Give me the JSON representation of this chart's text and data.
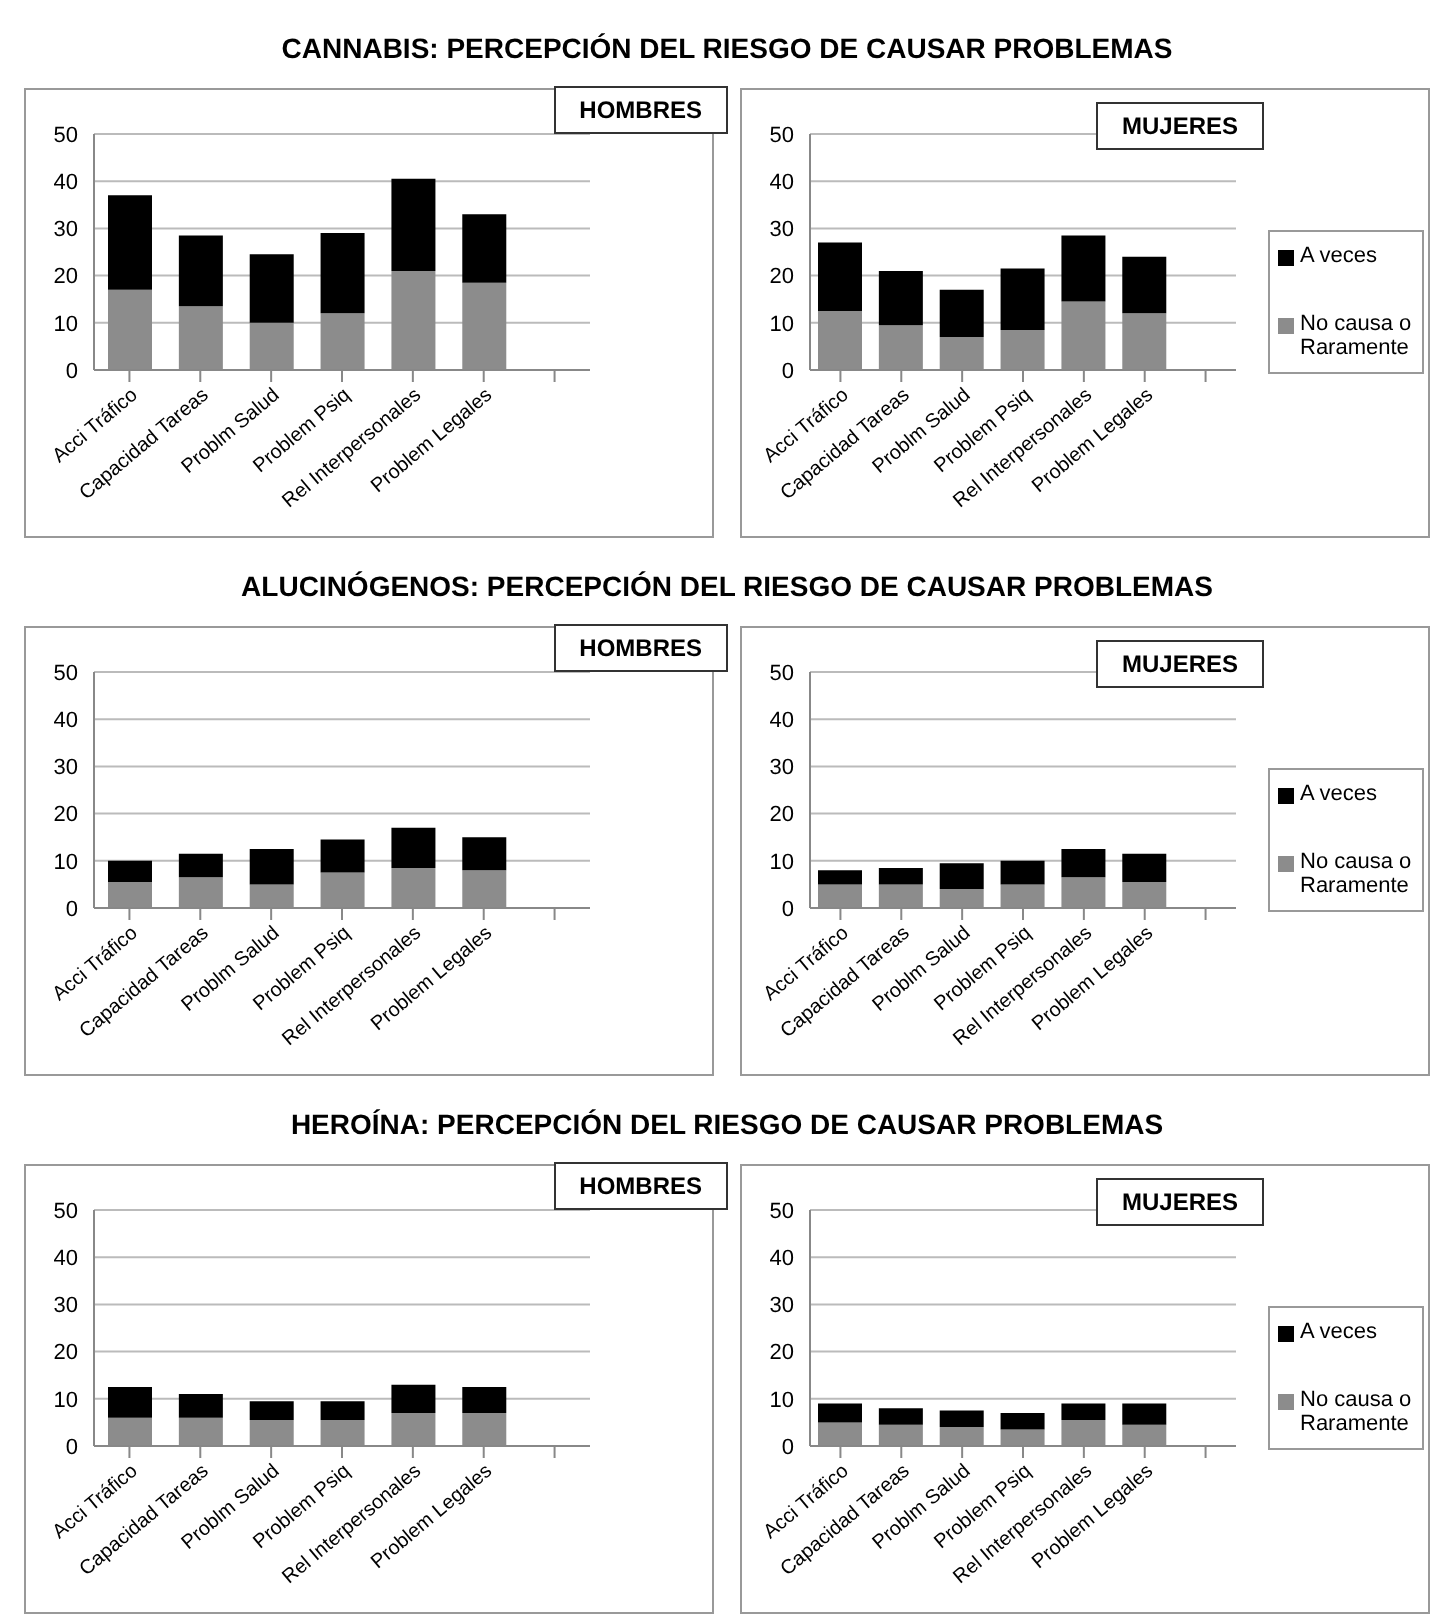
{
  "chart_data": [
    {
      "type": "bar",
      "title": "CANNABIS: PERCEPCIÓN DEL RIESGO DE CAUSAR PROBLEMAS",
      "subtitle": "HOMBRES",
      "categories": [
        "Acci Tráfico",
        "Capacidad Tareas",
        "Problm Salud",
        "Problem Psiq",
        "Rel Interpersonales",
        "Problem Legales",
        null
      ],
      "stacked": true,
      "ylim": [
        0,
        50
      ],
      "yticks": [
        0,
        10,
        20,
        30,
        40,
        50
      ],
      "grid": "y",
      "legend": false,
      "series": [
        {
          "color": "#8c8c8c",
          "values": [
            17,
            13.5,
            10,
            12,
            21,
            18.5,
            null
          ]
        },
        {
          "color": "#000000",
          "values": [
            20,
            15,
            14.5,
            17,
            19.5,
            14.5,
            null
          ]
        }
      ]
    },
    {
      "type": "bar",
      "subtitle": "MUJERES",
      "categories": [
        "Acci Tráfico",
        "Capacidad Tareas",
        "Problm Salud",
        "Problem Psiq",
        "Rel Interpersonales",
        "Problem Legales",
        null
      ],
      "stacked": true,
      "ylim": [
        0,
        50
      ],
      "yticks": [
        0,
        10,
        20,
        30,
        40,
        50
      ],
      "grid": "y",
      "legend": "right",
      "series": [
        {
          "name": "No causa o Raramente",
          "color": "#8c8c8c",
          "values": [
            12.5,
            9.5,
            7,
            8.5,
            14.5,
            12,
            null
          ]
        },
        {
          "name": "A veces",
          "color": "#000000",
          "values": [
            14.5,
            11.5,
            10,
            13,
            14,
            12,
            null
          ]
        }
      ]
    },
    {
      "type": "bar",
      "title": "ALUCINÓGENOS: PERCEPCIÓN DEL RIESGO DE CAUSAR PROBLEMAS",
      "subtitle": "HOMBRES",
      "categories": [
        "Acci Tráfico",
        "Capacidad Tareas",
        "Problm Salud",
        "Problem Psiq",
        "Rel Interpersonales",
        "Problem Legales",
        null
      ],
      "stacked": true,
      "ylim": [
        0,
        50
      ],
      "yticks": [
        0,
        10,
        20,
        30,
        40,
        50
      ],
      "grid": "y",
      "legend": false,
      "series": [
        {
          "color": "#8c8c8c",
          "values": [
            5.5,
            6.5,
            5,
            7.5,
            8.5,
            8,
            null
          ]
        },
        {
          "color": "#000000",
          "values": [
            4.5,
            5,
            7.5,
            7,
            8.5,
            7,
            null
          ]
        }
      ]
    },
    {
      "type": "bar",
      "subtitle": "MUJERES",
      "categories": [
        "Acci Tráfico",
        "Capacidad Tareas",
        "Problm Salud",
        "Problem Psiq",
        "Rel Interpersonales",
        "Problem Legales",
        null
      ],
      "stacked": true,
      "ylim": [
        0,
        50
      ],
      "yticks": [
        0,
        10,
        20,
        30,
        40,
        50
      ],
      "grid": "y",
      "legend": "right",
      "series": [
        {
          "name": "No causa o Raramente",
          "color": "#8c8c8c",
          "values": [
            5,
            5,
            4,
            5,
            6.5,
            5.5,
            null
          ]
        },
        {
          "name": "A veces",
          "color": "#000000",
          "values": [
            3,
            3.5,
            5.5,
            5,
            6,
            6,
            null
          ]
        }
      ]
    },
    {
      "type": "bar",
      "title": "HEROÍNA: PERCEPCIÓN DEL RIESGO DE CAUSAR PROBLEMAS",
      "subtitle": "HOMBRES",
      "categories": [
        "Acci Tráfico",
        "Capacidad Tareas",
        "Problm Salud",
        "Problem Psiq",
        "Rel Interpersonales",
        "Problem Legales",
        null
      ],
      "stacked": true,
      "ylim": [
        0,
        50
      ],
      "yticks": [
        0,
        10,
        20,
        30,
        40,
        50
      ],
      "grid": "y",
      "legend": false,
      "series": [
        {
          "color": "#8c8c8c",
          "values": [
            6,
            6,
            5.5,
            5.5,
            7,
            7,
            null
          ]
        },
        {
          "color": "#000000",
          "values": [
            6.5,
            5,
            4,
            4,
            6,
            5.5,
            null
          ]
        }
      ]
    },
    {
      "type": "bar",
      "subtitle": "MUJERES",
      "categories": [
        "Acci Tráfico",
        "Capacidad Tareas",
        "Problm Salud",
        "Problem Psiq",
        "Rel Interpersonales",
        "Problem Legales",
        null
      ],
      "stacked": true,
      "ylim": [
        0,
        50
      ],
      "yticks": [
        0,
        10,
        20,
        30,
        40,
        50
      ],
      "grid": "y",
      "legend": "right",
      "series": [
        {
          "name": "No causa o Raramente",
          "color": "#8c8c8c",
          "values": [
            5,
            4.5,
            4,
            3.5,
            5.5,
            4.5,
            null
          ]
        },
        {
          "name": "A veces",
          "color": "#000000",
          "values": [
            4,
            3.5,
            3.5,
            3.5,
            3.5,
            4.5,
            null
          ]
        }
      ]
    }
  ]
}
